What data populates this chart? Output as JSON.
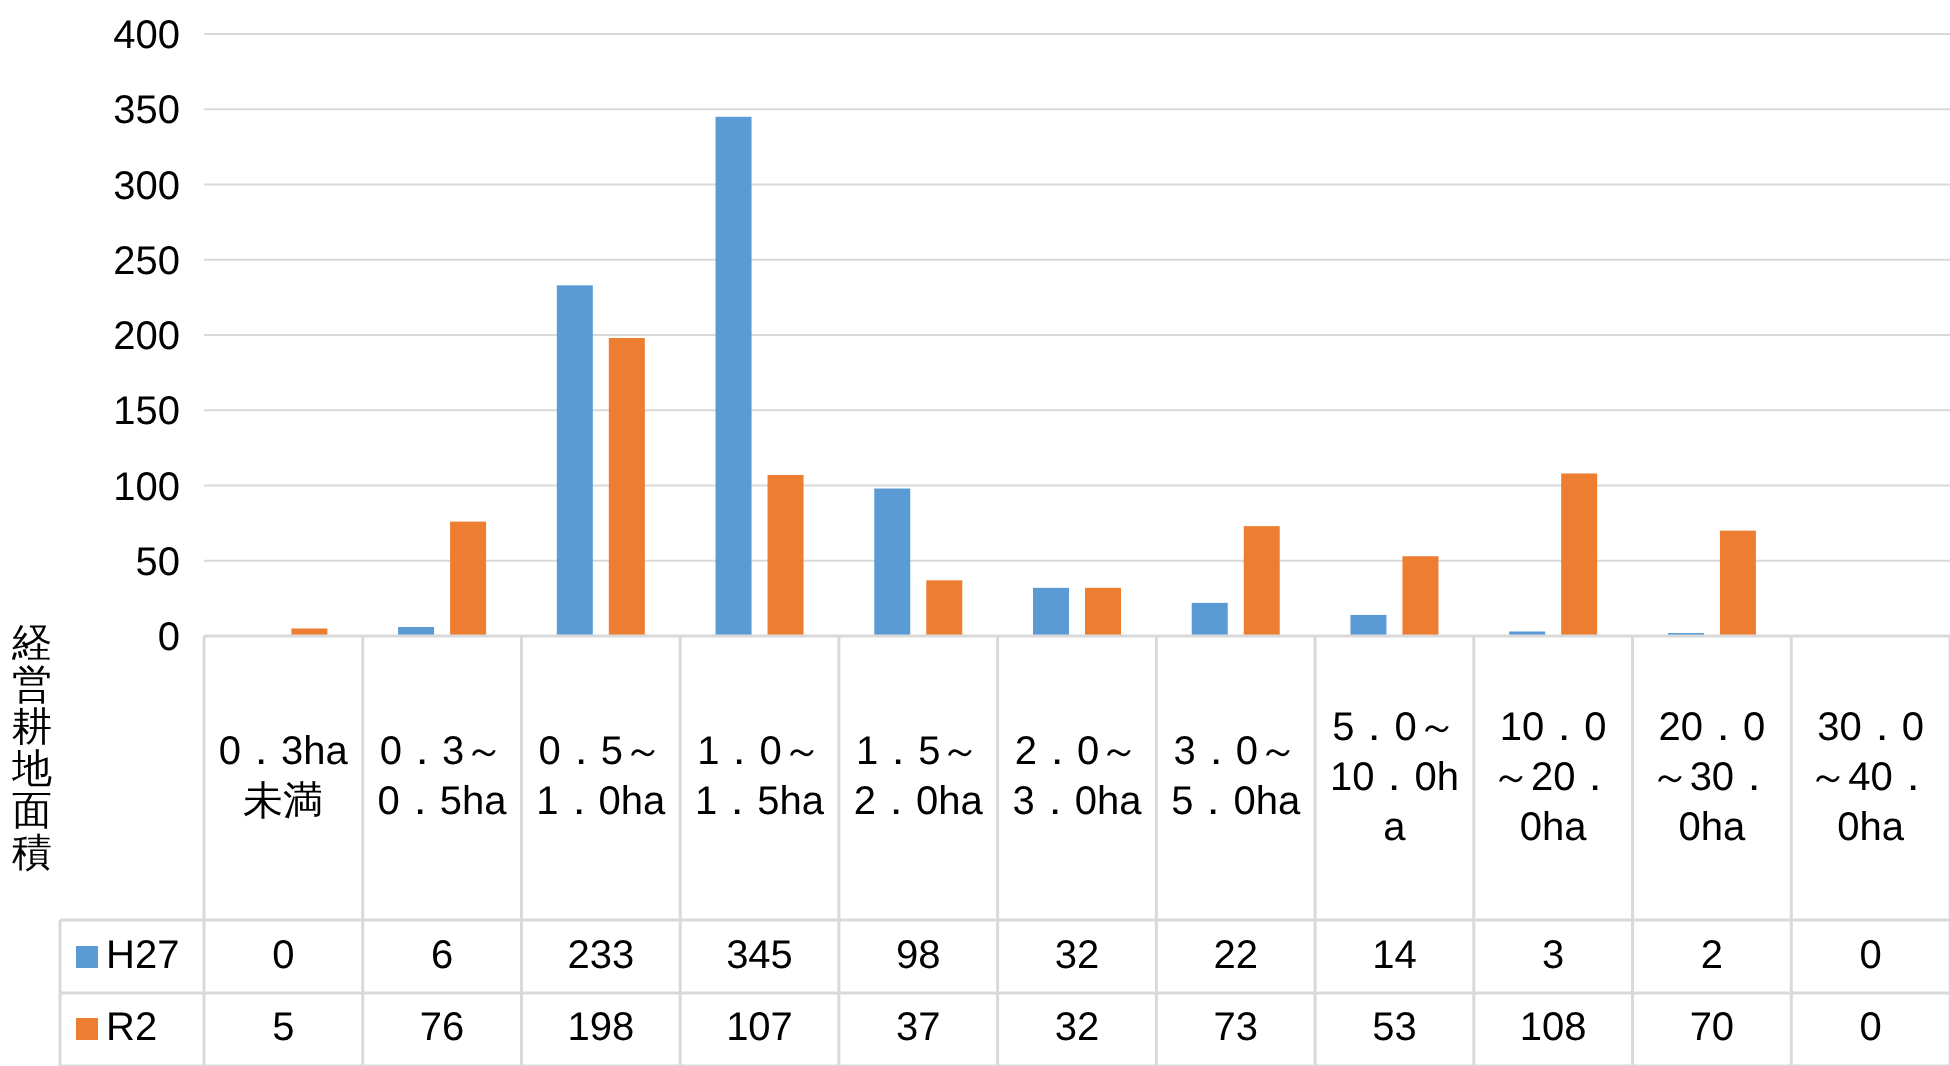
{
  "chart_data": {
    "type": "bar",
    "ylabel": "経営耕地面積",
    "categories": [
      "0．3ha未満",
      "0．3～0．5ha",
      "0．5～1．0ha",
      "1．0～1．5ha",
      "1．5～2．0ha",
      "2．0～3．0ha",
      "3．0～5．0ha",
      "5．0～10．0ha",
      "10．0～20．0ha",
      "20．0～30．0ha",
      "30．0～40．0ha"
    ],
    "series": [
      {
        "name": "H27",
        "color": "#5b9bd5",
        "values": [
          0,
          6,
          233,
          345,
          98,
          32,
          22,
          14,
          3,
          2,
          0
        ]
      },
      {
        "name": "R2",
        "color": "#ed7d31",
        "values": [
          5,
          76,
          198,
          107,
          37,
          32,
          73,
          53,
          108,
          70,
          0
        ]
      }
    ],
    "ylim": [
      0,
      400
    ],
    "yticks": [
      0,
      50,
      100,
      150,
      200,
      250,
      300,
      350,
      400
    ],
    "grid": "y",
    "legend": "bottom",
    "data_labels": true
  }
}
